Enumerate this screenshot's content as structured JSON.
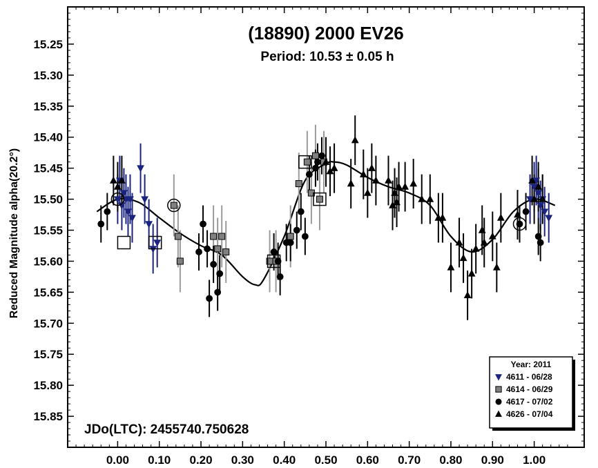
{
  "chart_data": {
    "type": "scatter",
    "title": "(18890) 2000 EV26",
    "subtitle": "Period: 10.53 ± 0.05 h",
    "xlabel": "",
    "ylabel": "Reduced Magnitude alpha(20.2°)",
    "xlim": [
      -0.12,
      1.12
    ],
    "ylim": [
      15.9,
      15.19
    ],
    "y_inverted": true,
    "x_ticks": [
      "0.00",
      "0.10",
      "0.20",
      "0.30",
      "0.40",
      "0.50",
      "0.60",
      "0.70",
      "0.80",
      "0.90",
      "1.00"
    ],
    "x_tick_values": [
      0,
      0.1,
      0.2,
      0.3,
      0.4,
      0.5,
      0.6,
      0.7,
      0.8,
      0.9,
      1.0
    ],
    "y_ticks": [
      "15.25",
      "15.30",
      "15.35",
      "15.40",
      "15.45",
      "15.50",
      "15.55",
      "15.60",
      "15.65",
      "15.70",
      "15.75",
      "15.80",
      "15.85"
    ],
    "y_tick_values": [
      15.25,
      15.3,
      15.35,
      15.4,
      15.45,
      15.5,
      15.55,
      15.6,
      15.65,
      15.7,
      15.75,
      15.8,
      15.85
    ],
    "annotation": "JDo(LTC): 2455740.750628",
    "legend": {
      "title": "Year: 2011",
      "position": "bottom-right",
      "entries": [
        {
          "label": "4611 - 06/28",
          "marker": "triangle-down",
          "color": "#1a237e"
        },
        {
          "label": "4614 - 06/29",
          "marker": "square",
          "color": "#808080"
        },
        {
          "label": "4617 - 07/02",
          "marker": "circle",
          "color": "#000000"
        },
        {
          "label": "4626 - 07/04",
          "marker": "triangle-up",
          "color": "#000000"
        }
      ]
    },
    "fit_curve": {
      "name": "Fourier fit",
      "x": [
        -0.05,
        0.0,
        0.05,
        0.1,
        0.15,
        0.2,
        0.25,
        0.3,
        0.33,
        0.35,
        0.4,
        0.45,
        0.5,
        0.52,
        0.55,
        0.6,
        0.65,
        0.7,
        0.75,
        0.8,
        0.85,
        0.9,
        0.95,
        1.0,
        1.05
      ],
      "y": [
        15.52,
        15.5,
        15.505,
        15.53,
        15.555,
        15.575,
        15.59,
        15.625,
        15.638,
        15.63,
        15.56,
        15.47,
        15.443,
        15.44,
        15.445,
        15.465,
        15.48,
        15.49,
        15.51,
        15.56,
        15.585,
        15.565,
        15.52,
        15.5,
        15.51
      ]
    },
    "series": [
      {
        "name": "4611 - 06/28",
        "marker": "triangle-down",
        "color": "#1a237e",
        "errcolor": "#1a237e",
        "points": [
          {
            "x": 0.0,
            "y": 15.5,
            "e": 0.04
          },
          {
            "x": 0.005,
            "y": 15.47,
            "e": 0.04
          },
          {
            "x": 0.01,
            "y": 15.51,
            "e": 0.04
          },
          {
            "x": 0.015,
            "y": 15.49,
            "e": 0.04
          },
          {
            "x": 0.02,
            "y": 15.5,
            "e": 0.04
          },
          {
            "x": 0.025,
            "y": 15.52,
            "e": 0.04
          },
          {
            "x": 0.03,
            "y": 15.5,
            "e": 0.04
          },
          {
            "x": 0.035,
            "y": 15.53,
            "e": 0.04
          },
          {
            "x": 0.055,
            "y": 15.45,
            "e": 0.04
          },
          {
            "x": 0.065,
            "y": 15.5,
            "e": 0.04
          },
          {
            "x": 0.075,
            "y": 15.54,
            "e": 0.04
          },
          {
            "x": 0.085,
            "y": 15.58,
            "e": 0.04
          },
          {
            "x": 0.095,
            "y": 15.57,
            "e": 0.04
          },
          {
            "x": 0.99,
            "y": 15.5,
            "e": 0.04
          },
          {
            "x": 1.0,
            "y": 15.48,
            "e": 0.04
          },
          {
            "x": 1.005,
            "y": 15.47,
            "e": 0.04
          },
          {
            "x": 1.01,
            "y": 15.49,
            "e": 0.04
          },
          {
            "x": 1.015,
            "y": 15.51,
            "e": 0.04
          },
          {
            "x": 1.02,
            "y": 15.5,
            "e": 0.04
          },
          {
            "x": 1.025,
            "y": 15.52,
            "e": 0.04
          },
          {
            "x": 1.035,
            "y": 15.53,
            "e": 0.04
          }
        ]
      },
      {
        "name": "4614 - 06/29",
        "marker": "square",
        "color": "#808080",
        "errcolor": "#9a9a9a",
        "points": [
          {
            "x": 0.135,
            "y": 15.51,
            "e": 0.05
          },
          {
            "x": 0.145,
            "y": 15.56,
            "e": 0.05
          },
          {
            "x": 0.15,
            "y": 15.6,
            "e": 0.05
          },
          {
            "x": 0.23,
            "y": 15.56,
            "e": 0.05
          },
          {
            "x": 0.24,
            "y": 15.58,
            "e": 0.05
          },
          {
            "x": 0.25,
            "y": 15.56,
            "e": 0.05
          },
          {
            "x": 0.26,
            "y": 15.585,
            "e": 0.05
          },
          {
            "x": 0.365,
            "y": 15.6,
            "e": 0.05
          },
          {
            "x": 0.38,
            "y": 15.6,
            "e": 0.05
          },
          {
            "x": 0.415,
            "y": 15.56,
            "e": 0.05
          },
          {
            "x": 0.435,
            "y": 15.475,
            "e": 0.05
          },
          {
            "x": 0.455,
            "y": 15.44,
            "e": 0.05
          },
          {
            "x": 0.465,
            "y": 15.49,
            "e": 0.05
          },
          {
            "x": 0.475,
            "y": 15.43,
            "e": 0.05
          },
          {
            "x": 0.485,
            "y": 15.5,
            "e": 0.05
          },
          {
            "x": 0.495,
            "y": 15.44,
            "e": 0.05
          }
        ]
      },
      {
        "name": "4617 - 07/02",
        "marker": "circle",
        "color": "#000000",
        "errcolor": "#000000",
        "points": [
          {
            "x": -0.04,
            "y": 15.54,
            "e": 0.03
          },
          {
            "x": -0.025,
            "y": 15.52,
            "e": 0.03
          },
          {
            "x": 0.195,
            "y": 15.585,
            "e": 0.03
          },
          {
            "x": 0.205,
            "y": 15.54,
            "e": 0.03
          },
          {
            "x": 0.215,
            "y": 15.58,
            "e": 0.03
          },
          {
            "x": 0.22,
            "y": 15.66,
            "e": 0.03
          },
          {
            "x": 0.23,
            "y": 15.605,
            "e": 0.03
          },
          {
            "x": 0.24,
            "y": 15.65,
            "e": 0.03
          },
          {
            "x": 0.245,
            "y": 15.62,
            "e": 0.03
          },
          {
            "x": 0.375,
            "y": 15.585,
            "e": 0.03
          },
          {
            "x": 0.385,
            "y": 15.6,
            "e": 0.03
          },
          {
            "x": 0.39,
            "y": 15.625,
            "e": 0.03
          },
          {
            "x": 0.405,
            "y": 15.57,
            "e": 0.03
          },
          {
            "x": 0.415,
            "y": 15.57,
            "e": 0.03
          },
          {
            "x": 0.43,
            "y": 15.55,
            "e": 0.03
          },
          {
            "x": 0.44,
            "y": 15.52,
            "e": 0.03
          },
          {
            "x": 0.45,
            "y": 15.56,
            "e": 0.03
          },
          {
            "x": 0.46,
            "y": 15.46,
            "e": 0.03
          },
          {
            "x": 0.475,
            "y": 15.45,
            "e": 0.03
          },
          {
            "x": 0.48,
            "y": 15.44,
            "e": 0.03
          },
          {
            "x": 0.49,
            "y": 15.43,
            "e": 0.03
          },
          {
            "x": 0.965,
            "y": 15.54,
            "e": 0.03
          },
          {
            "x": 0.98,
            "y": 15.52,
            "e": 0.03
          },
          {
            "x": 1.01,
            "y": 15.56,
            "e": 0.03
          },
          {
            "x": 1.015,
            "y": 15.57,
            "e": 0.03
          }
        ]
      },
      {
        "name": "4626 - 07/04",
        "marker": "triangle-up",
        "color": "#000000",
        "errcolor": "#000000",
        "points": [
          {
            "x": -0.01,
            "y": 15.47,
            "e": 0.04
          },
          {
            "x": 0.0,
            "y": 15.48,
            "e": 0.04
          },
          {
            "x": 0.01,
            "y": 15.47,
            "e": 0.04
          },
          {
            "x": 0.5,
            "y": 15.44,
            "e": 0.04
          },
          {
            "x": 0.51,
            "y": 15.455,
            "e": 0.04
          },
          {
            "x": 0.52,
            "y": 15.45,
            "e": 0.04
          },
          {
            "x": 0.56,
            "y": 15.475,
            "e": 0.04
          },
          {
            "x": 0.57,
            "y": 15.405,
            "e": 0.04
          },
          {
            "x": 0.59,
            "y": 15.46,
            "e": 0.04
          },
          {
            "x": 0.6,
            "y": 15.49,
            "e": 0.04
          },
          {
            "x": 0.61,
            "y": 15.45,
            "e": 0.04
          },
          {
            "x": 0.62,
            "y": 15.47,
            "e": 0.04
          },
          {
            "x": 0.65,
            "y": 15.47,
            "e": 0.04
          },
          {
            "x": 0.66,
            "y": 15.51,
            "e": 0.04
          },
          {
            "x": 0.665,
            "y": 15.49,
            "e": 0.04
          },
          {
            "x": 0.67,
            "y": 15.505,
            "e": 0.04
          },
          {
            "x": 0.675,
            "y": 15.48,
            "e": 0.04
          },
          {
            "x": 0.69,
            "y": 15.48,
            "e": 0.04
          },
          {
            "x": 0.71,
            "y": 15.475,
            "e": 0.04
          },
          {
            "x": 0.73,
            "y": 15.5,
            "e": 0.04
          },
          {
            "x": 0.75,
            "y": 15.5,
            "e": 0.04
          },
          {
            "x": 0.77,
            "y": 15.53,
            "e": 0.04
          },
          {
            "x": 0.78,
            "y": 15.53,
            "e": 0.04
          },
          {
            "x": 0.8,
            "y": 15.61,
            "e": 0.04
          },
          {
            "x": 0.82,
            "y": 15.57,
            "e": 0.04
          },
          {
            "x": 0.83,
            "y": 15.595,
            "e": 0.04
          },
          {
            "x": 0.84,
            "y": 15.655,
            "e": 0.04
          },
          {
            "x": 0.85,
            "y": 15.62,
            "e": 0.04
          },
          {
            "x": 0.86,
            "y": 15.58,
            "e": 0.04
          },
          {
            "x": 0.875,
            "y": 15.55,
            "e": 0.04
          },
          {
            "x": 0.88,
            "y": 15.57,
            "e": 0.04
          },
          {
            "x": 0.9,
            "y": 15.56,
            "e": 0.04
          },
          {
            "x": 0.91,
            "y": 15.61,
            "e": 0.04
          },
          {
            "x": 0.92,
            "y": 15.53,
            "e": 0.04
          },
          {
            "x": 0.96,
            "y": 15.525,
            "e": 0.04
          },
          {
            "x": 0.995,
            "y": 15.47,
            "e": 0.04
          },
          {
            "x": 1.0,
            "y": 15.5,
            "e": 0.04
          },
          {
            "x": 1.01,
            "y": 15.48,
            "e": 0.04
          },
          {
            "x": 1.02,
            "y": 15.5,
            "e": 0.04
          }
        ]
      }
    ],
    "highlighted": [
      {
        "x": 0.0,
        "y": 15.5,
        "shape": "circle"
      },
      {
        "x": 0.135,
        "y": 15.51,
        "shape": "circle"
      },
      {
        "x": 0.965,
        "y": 15.54,
        "shape": "circle"
      },
      {
        "x": 0.015,
        "y": 15.57,
        "shape": "square"
      },
      {
        "x": 0.09,
        "y": 15.57,
        "shape": "square"
      },
      {
        "x": 0.375,
        "y": 15.6,
        "shape": "square"
      },
      {
        "x": 0.45,
        "y": 15.44,
        "shape": "square"
      },
      {
        "x": 0.485,
        "y": 15.5,
        "shape": "square"
      }
    ]
  }
}
